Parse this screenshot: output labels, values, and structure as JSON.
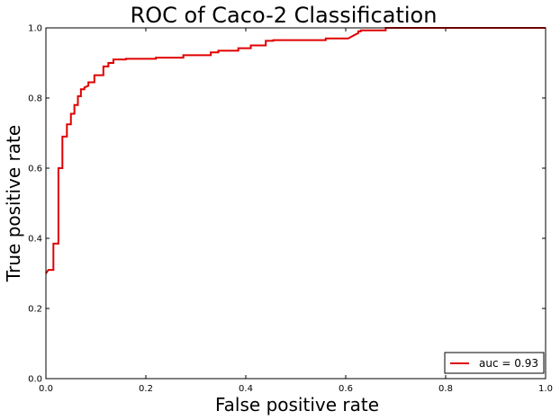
{
  "chart_data": {
    "type": "line",
    "title": "ROC of Caco-2 Classification",
    "xlabel": "False positive rate",
    "ylabel": "True positive rate",
    "xlim": [
      0.0,
      1.0
    ],
    "ylim": [
      0.0,
      1.0
    ],
    "xticks": [
      0.0,
      0.2,
      0.4,
      0.6,
      0.8,
      1.0
    ],
    "yticks": [
      0.0,
      0.2,
      0.4,
      0.6,
      0.8,
      1.0
    ],
    "xtick_labels": [
      "0.0",
      "0.2",
      "0.4",
      "0.6",
      "0.8",
      "1.0"
    ],
    "ytick_labels": [
      "0.0",
      "0.2",
      "0.4",
      "0.6",
      "0.8",
      "1.0"
    ],
    "grid": false,
    "legend_position": "lower-right",
    "series": [
      {
        "name": "auc = 0.93",
        "color": "#e00000",
        "x": [
          0.0,
          0.005,
          0.005,
          0.015,
          0.015,
          0.025,
          0.025,
          0.033,
          0.033,
          0.042,
          0.042,
          0.05,
          0.05,
          0.057,
          0.057,
          0.064,
          0.064,
          0.07,
          0.07,
          0.077,
          0.077,
          0.085,
          0.085,
          0.097,
          0.097,
          0.115,
          0.115,
          0.125,
          0.125,
          0.135,
          0.135,
          0.16,
          0.16,
          0.22,
          0.22,
          0.275,
          0.275,
          0.33,
          0.33,
          0.345,
          0.345,
          0.385,
          0.385,
          0.41,
          0.41,
          0.44,
          0.44,
          0.455,
          0.455,
          0.56,
          0.56,
          0.605,
          0.618,
          0.625,
          0.625,
          0.63,
          0.63,
          0.68,
          0.68,
          1.0
        ],
        "y": [
          0.3,
          0.31,
          0.31,
          0.31,
          0.385,
          0.385,
          0.6,
          0.6,
          0.69,
          0.69,
          0.725,
          0.725,
          0.755,
          0.755,
          0.78,
          0.78,
          0.805,
          0.805,
          0.825,
          0.825,
          0.83,
          0.835,
          0.845,
          0.845,
          0.865,
          0.865,
          0.89,
          0.89,
          0.9,
          0.9,
          0.91,
          0.91,
          0.912,
          0.912,
          0.915,
          0.915,
          0.922,
          0.922,
          0.93,
          0.93,
          0.935,
          0.935,
          0.942,
          0.942,
          0.95,
          0.95,
          0.963,
          0.963,
          0.965,
          0.965,
          0.97,
          0.97,
          0.98,
          0.985,
          0.99,
          0.99,
          0.993,
          0.993,
          1.0,
          1.0
        ]
      }
    ]
  }
}
